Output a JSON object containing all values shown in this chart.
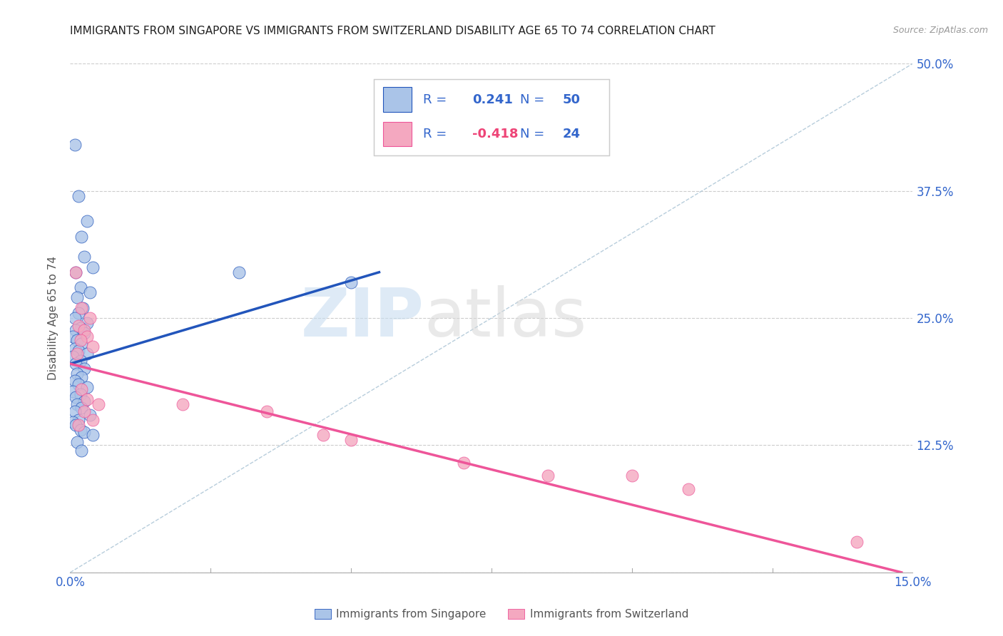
{
  "title": "IMMIGRANTS FROM SINGAPORE VS IMMIGRANTS FROM SWITZERLAND DISABILITY AGE 65 TO 74 CORRELATION CHART",
  "source": "Source: ZipAtlas.com",
  "ylabel": "Disability Age 65 to 74",
  "xlim": [
    0.0,
    0.15
  ],
  "ylim": [
    0.0,
    0.5
  ],
  "xticks": [
    0.0,
    0.025,
    0.05,
    0.075,
    0.1,
    0.125,
    0.15
  ],
  "xticklabels": [
    "0.0%",
    "",
    "",
    "",
    "",
    "",
    "15.0%"
  ],
  "yticks": [
    0.0,
    0.125,
    0.25,
    0.375,
    0.5
  ],
  "yticklabels_right": [
    "",
    "12.5%",
    "25.0%",
    "37.5%",
    "50.0%"
  ],
  "singapore_color": "#aac4e8",
  "switzerland_color": "#f4a8c0",
  "singapore_line_color": "#2255bb",
  "switzerland_line_color": "#ee5599",
  "diagonal_line_color": "#b0c8d8",
  "r_singapore": 0.241,
  "n_singapore": 50,
  "r_switzerland": -0.418,
  "n_switzerland": 24,
  "watermark_zip": "ZIP",
  "watermark_atlas": "atlas",
  "singapore_points": [
    [
      0.0008,
      0.42
    ],
    [
      0.0015,
      0.37
    ],
    [
      0.003,
      0.345
    ],
    [
      0.002,
      0.33
    ],
    [
      0.0025,
      0.31
    ],
    [
      0.004,
      0.3
    ],
    [
      0.001,
      0.295
    ],
    [
      0.0018,
      0.28
    ],
    [
      0.0035,
      0.275
    ],
    [
      0.0012,
      0.27
    ],
    [
      0.0022,
      0.26
    ],
    [
      0.0015,
      0.255
    ],
    [
      0.0008,
      0.25
    ],
    [
      0.003,
      0.245
    ],
    [
      0.0018,
      0.24
    ],
    [
      0.001,
      0.238
    ],
    [
      0.0025,
      0.235
    ],
    [
      0.0005,
      0.232
    ],
    [
      0.0012,
      0.228
    ],
    [
      0.002,
      0.225
    ],
    [
      0.0008,
      0.22
    ],
    [
      0.0015,
      0.218
    ],
    [
      0.003,
      0.215
    ],
    [
      0.0005,
      0.212
    ],
    [
      0.0018,
      0.208
    ],
    [
      0.001,
      0.205
    ],
    [
      0.0025,
      0.2
    ],
    [
      0.0012,
      0.195
    ],
    [
      0.002,
      0.192
    ],
    [
      0.0008,
      0.188
    ],
    [
      0.0015,
      0.185
    ],
    [
      0.003,
      0.182
    ],
    [
      0.0005,
      0.178
    ],
    [
      0.0018,
      0.175
    ],
    [
      0.001,
      0.172
    ],
    [
      0.0025,
      0.168
    ],
    [
      0.0012,
      0.165
    ],
    [
      0.002,
      0.162
    ],
    [
      0.0008,
      0.158
    ],
    [
      0.0035,
      0.155
    ],
    [
      0.0015,
      0.15
    ],
    [
      0.0005,
      0.148
    ],
    [
      0.001,
      0.145
    ],
    [
      0.0018,
      0.14
    ],
    [
      0.0025,
      0.138
    ],
    [
      0.004,
      0.135
    ],
    [
      0.0012,
      0.128
    ],
    [
      0.002,
      0.12
    ],
    [
      0.03,
      0.295
    ],
    [
      0.05,
      0.285
    ]
  ],
  "switzerland_points": [
    [
      0.001,
      0.295
    ],
    [
      0.002,
      0.26
    ],
    [
      0.0035,
      0.25
    ],
    [
      0.0015,
      0.242
    ],
    [
      0.0025,
      0.238
    ],
    [
      0.003,
      0.232
    ],
    [
      0.0018,
      0.228
    ],
    [
      0.004,
      0.222
    ],
    [
      0.0012,
      0.215
    ],
    [
      0.002,
      0.18
    ],
    [
      0.003,
      0.17
    ],
    [
      0.005,
      0.165
    ],
    [
      0.0025,
      0.158
    ],
    [
      0.004,
      0.15
    ],
    [
      0.0015,
      0.145
    ],
    [
      0.02,
      0.165
    ],
    [
      0.035,
      0.158
    ],
    [
      0.045,
      0.135
    ],
    [
      0.05,
      0.13
    ],
    [
      0.07,
      0.108
    ],
    [
      0.085,
      0.095
    ],
    [
      0.1,
      0.095
    ],
    [
      0.11,
      0.082
    ],
    [
      0.14,
      0.03
    ]
  ],
  "background_color": "#ffffff",
  "legend_color_singapore": "#aac4e8",
  "legend_color_switzerland": "#f4a8c0",
  "sg_line_x0": 0.0,
  "sg_line_x1": 0.055,
  "sg_line_y0": 0.205,
  "sg_line_y1": 0.295,
  "sw_line_x0": 0.0,
  "sw_line_x1": 0.148,
  "sw_line_y0": 0.205,
  "sw_line_y1": 0.0
}
